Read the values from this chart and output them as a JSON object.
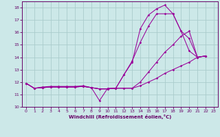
{
  "xlabel": "Windchill (Refroidissement éolien,°C)",
  "background_color": "#cce8e8",
  "grid_color": "#aacccc",
  "line_color": "#990099",
  "xlim": [
    -0.5,
    23.5
  ],
  "ylim": [
    10,
    18.5
  ],
  "yticks": [
    10,
    11,
    12,
    13,
    14,
    15,
    16,
    17,
    18
  ],
  "xticks": [
    0,
    1,
    2,
    3,
    4,
    5,
    6,
    7,
    8,
    9,
    10,
    11,
    12,
    13,
    14,
    15,
    16,
    17,
    18,
    19,
    20,
    21,
    22,
    23
  ],
  "lines": [
    {
      "x": [
        0,
        1,
        2,
        3,
        4,
        5,
        6,
        7,
        8,
        9,
        10,
        11,
        12,
        13,
        14,
        15,
        16,
        17,
        18,
        19,
        20,
        21,
        22
      ],
      "y": [
        11.9,
        11.5,
        11.6,
        11.65,
        11.65,
        11.65,
        11.65,
        11.7,
        11.55,
        10.5,
        11.5,
        11.5,
        12.6,
        13.6,
        16.3,
        17.4,
        17.9,
        18.2,
        17.5,
        16.1,
        15.5,
        14.0,
        14.1
      ]
    },
    {
      "x": [
        0,
        1,
        2,
        3,
        4,
        5,
        6,
        7,
        8,
        9,
        10,
        11,
        12,
        13,
        14,
        15,
        16,
        17,
        18,
        19,
        20,
        21,
        22
      ],
      "y": [
        11.9,
        11.5,
        11.55,
        11.6,
        11.6,
        11.6,
        11.6,
        11.65,
        11.55,
        11.45,
        11.45,
        11.5,
        12.6,
        13.7,
        15.2,
        16.5,
        17.5,
        17.5,
        17.5,
        16.1,
        14.5,
        14.0,
        14.1
      ]
    },
    {
      "x": [
        0,
        1,
        2,
        3,
        4,
        5,
        6,
        7,
        8,
        9,
        10,
        11,
        12,
        13,
        14,
        15,
        16,
        17,
        18,
        19,
        20,
        21,
        22
      ],
      "y": [
        11.9,
        11.5,
        11.55,
        11.6,
        11.6,
        11.6,
        11.6,
        11.65,
        11.55,
        11.45,
        11.45,
        11.5,
        11.5,
        11.5,
        12.0,
        12.8,
        13.6,
        14.4,
        15.0,
        15.7,
        16.1,
        14.0,
        14.1
      ]
    },
    {
      "x": [
        0,
        1,
        2,
        3,
        4,
        5,
        6,
        7,
        8,
        9,
        10,
        11,
        12,
        13,
        14,
        15,
        16,
        17,
        18,
        19,
        20,
        21,
        22
      ],
      "y": [
        11.9,
        11.5,
        11.55,
        11.6,
        11.6,
        11.6,
        11.6,
        11.65,
        11.55,
        11.45,
        11.45,
        11.5,
        11.5,
        11.5,
        11.7,
        12.0,
        12.3,
        12.7,
        13.0,
        13.3,
        13.6,
        14.0,
        14.1
      ]
    }
  ]
}
